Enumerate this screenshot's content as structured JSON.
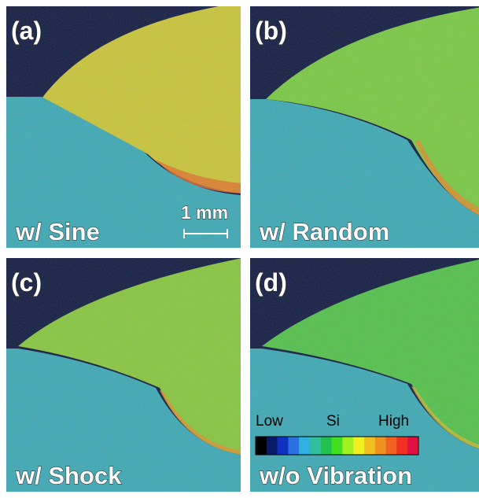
{
  "panels": [
    {
      "label": "(a)",
      "caption": "w/ Sine"
    },
    {
      "label": "(b)",
      "caption": "w/ Random"
    },
    {
      "label": "(c)",
      "caption": "w/ Shock"
    },
    {
      "label": "(d)",
      "caption": "w/o Vibration"
    }
  ],
  "scale_bar": {
    "label": "1 mm"
  },
  "color_bar": {
    "low": "Low",
    "element": "Si",
    "high": "High"
  }
}
